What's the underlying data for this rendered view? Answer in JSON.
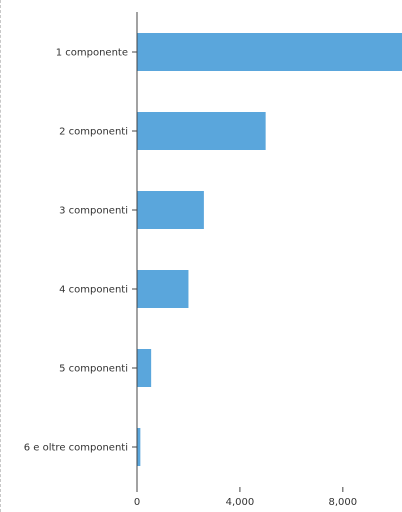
{
  "colors": {
    "bar": "#5aa6dc",
    "axis": "#444444",
    "text": "#333333",
    "frame": "#c8c8c8"
  },
  "chart_data": {
    "type": "bar",
    "orientation": "horizontal",
    "categories": [
      "1 componente",
      "2 componenti",
      "3 componenti",
      "4 componenti",
      "5 componenti",
      "6 e oltre componenti"
    ],
    "values": [
      10300,
      5000,
      2600,
      2000,
      550,
      130
    ],
    "x_ticks": [
      0,
      4000,
      8000
    ],
    "x_tick_labels": [
      "0",
      "4,000",
      "8,000"
    ],
    "xlim": [
      0,
      10300
    ],
    "title": "",
    "xlabel": "",
    "ylabel": "",
    "grid": false,
    "legend": "none"
  }
}
